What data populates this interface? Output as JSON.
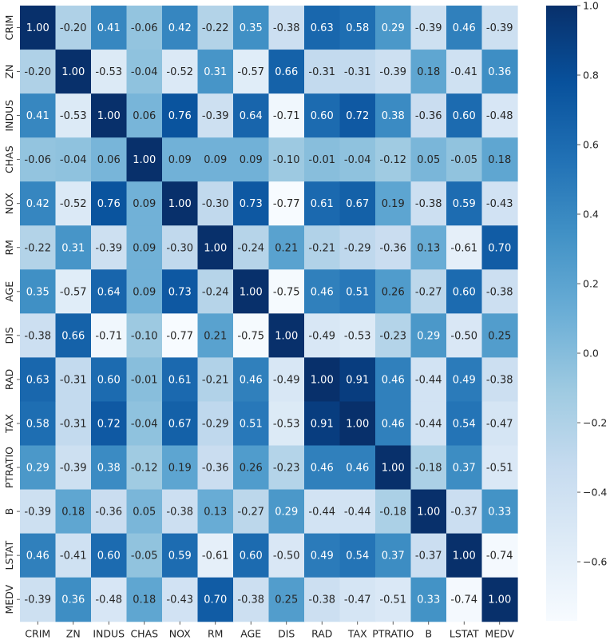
{
  "chart_data": {
    "type": "heatmap",
    "title": "",
    "xlabel": "",
    "ylabel": "",
    "labels": [
      "CRIM",
      "ZN",
      "INDUS",
      "CHAS",
      "NOX",
      "RM",
      "AGE",
      "DIS",
      "RAD",
      "TAX",
      "PTRATIO",
      "B",
      "LSTAT",
      "MEDV"
    ],
    "matrix": [
      [
        1.0,
        -0.2,
        0.41,
        -0.06,
        0.42,
        -0.22,
        0.35,
        -0.38,
        0.63,
        0.58,
        0.29,
        -0.39,
        0.46,
        -0.39
      ],
      [
        -0.2,
        1.0,
        -0.53,
        -0.04,
        -0.52,
        0.31,
        -0.57,
        0.66,
        -0.31,
        -0.31,
        -0.39,
        0.18,
        -0.41,
        0.36
      ],
      [
        0.41,
        -0.53,
        1.0,
        0.06,
        0.76,
        -0.39,
        0.64,
        -0.71,
        0.6,
        0.72,
        0.38,
        -0.36,
        0.6,
        -0.48
      ],
      [
        -0.06,
        -0.04,
        0.06,
        1.0,
        0.09,
        0.09,
        0.09,
        -0.1,
        -0.01,
        -0.04,
        -0.12,
        0.05,
        -0.05,
        0.18
      ],
      [
        0.42,
        -0.52,
        0.76,
        0.09,
        1.0,
        -0.3,
        0.73,
        -0.77,
        0.61,
        0.67,
        0.19,
        -0.38,
        0.59,
        -0.43
      ],
      [
        -0.22,
        0.31,
        -0.39,
        0.09,
        -0.3,
        1.0,
        -0.24,
        0.21,
        -0.21,
        -0.29,
        -0.36,
        0.13,
        -0.61,
        0.7
      ],
      [
        0.35,
        -0.57,
        0.64,
        0.09,
        0.73,
        -0.24,
        1.0,
        -0.75,
        0.46,
        0.51,
        0.26,
        -0.27,
        0.6,
        -0.38
      ],
      [
        -0.38,
        0.66,
        -0.71,
        -0.1,
        -0.77,
        0.21,
        -0.75,
        1.0,
        -0.49,
        -0.53,
        -0.23,
        0.29,
        -0.5,
        0.25
      ],
      [
        0.63,
        -0.31,
        0.6,
        -0.01,
        0.61,
        -0.21,
        0.46,
        -0.49,
        1.0,
        0.91,
        0.46,
        -0.44,
        0.49,
        -0.38
      ],
      [
        0.58,
        -0.31,
        0.72,
        -0.04,
        0.67,
        -0.29,
        0.51,
        -0.53,
        0.91,
        1.0,
        0.46,
        -0.44,
        0.54,
        -0.47
      ],
      [
        0.29,
        -0.39,
        0.38,
        -0.12,
        0.19,
        -0.36,
        0.26,
        -0.23,
        0.46,
        0.46,
        1.0,
        -0.18,
        0.37,
        -0.51
      ],
      [
        -0.39,
        0.18,
        -0.36,
        0.05,
        -0.38,
        0.13,
        -0.27,
        0.29,
        -0.44,
        -0.44,
        -0.18,
        1.0,
        -0.37,
        0.33
      ],
      [
        0.46,
        -0.41,
        0.6,
        -0.05,
        0.59,
        -0.61,
        0.6,
        -0.5,
        0.49,
        0.54,
        0.37,
        -0.37,
        1.0,
        -0.74
      ],
      [
        -0.39,
        0.36,
        -0.48,
        0.18,
        -0.43,
        0.7,
        -0.38,
        0.25,
        -0.38,
        -0.47,
        -0.51,
        0.33,
        -0.74,
        1.0
      ]
    ],
    "colormap": "Blues",
    "annot_format": "0.00",
    "vmin": -0.77,
    "vmax": 1.0,
    "colorbar_ticks": [
      1.0,
      0.8,
      0.6,
      0.4,
      0.2,
      0.0,
      -0.2,
      -0.4,
      -0.6
    ],
    "colorbar_tick_labels": [
      "1.0",
      "0.8",
      "0.6",
      "0.4",
      "0.2",
      "0.0",
      "−0.2",
      "−0.4",
      "−0.6"
    ]
  }
}
